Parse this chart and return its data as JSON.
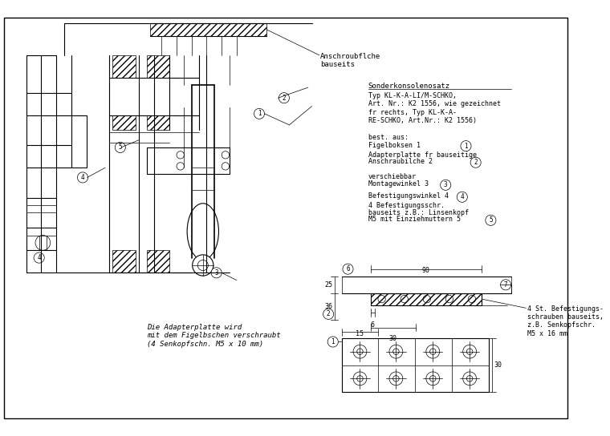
{
  "bg_color": "#ffffff",
  "line_color": "#000000",
  "fig_width": 7.6,
  "fig_height": 5.44,
  "texts": {
    "anschroubflche": "Anschroubflche\nbauseits",
    "sonderkonsole_title": "Sonderkonsolenosatz",
    "sonderkonsole_body": "Typ KL-K-A-LI/M-SCHKO,\nArt. Nr.: K2 1556, wie gezeichnet\nfr rechts, Typ KL-K-A-\nRE-SCHKO, Art.Nr.: K2 1556)",
    "best_aus": "best. aus:",
    "figelboksen": "Figelboksen 1",
    "adapterplatte": "Adapterplatte fr bauseitige\nAnschraubilche 2",
    "verschiebbar": "verschiebbar",
    "montagewinkel": "Montagewinkel 3",
    "befestigungswinkel": "Befestigungswinkel 4\n4 Befestigungsschr.\nbauseits z.B.: Linsenkopf\nM5 mit Einziehmuttern 5",
    "adapterplatte_note": "Die Adapterplatte wird\nmit dem Figelbschen verschraubt\n(4 Senkopfschn. M5 x 10 mm)",
    "dim_90": "90",
    "dim_25": "25",
    "dim_36": "36",
    "dim_6": "6",
    "dim_30": "30",
    "dim_15": "15",
    "dim_30b": "30",
    "bolts_note": "4 St. Befestigungs-\nschrauben bauseits,\nz.B. Senkopfschr.\nM5 x 16 mm"
  }
}
